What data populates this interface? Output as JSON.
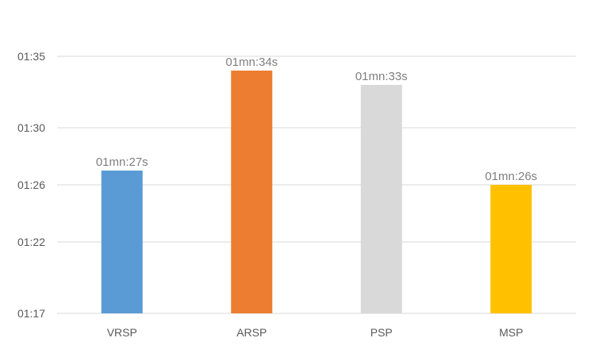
{
  "chart_data": {
    "type": "bar",
    "categories": [
      "VRSP",
      "ARSP",
      "PSP",
      "MSP"
    ],
    "values": [
      87,
      94,
      93,
      86
    ],
    "value_unit": "seconds",
    "data_labels": [
      "01mn:27s",
      "01mn:34s",
      "01mn:33s",
      "01mn:26s"
    ],
    "ylim": [
      77,
      95
    ],
    "yticks": [
      {
        "value": 77,
        "label": "01:17"
      },
      {
        "value": 82,
        "label": "01:22"
      },
      {
        "value": 86,
        "label": "01:26"
      },
      {
        "value": 90,
        "label": "01:30"
      },
      {
        "value": 95,
        "label": "01:35"
      }
    ],
    "colors": [
      "#5b9bd5",
      "#ed7d31",
      "#d9d9d9",
      "#ffc000"
    ],
    "grid": true,
    "legend": "none",
    "title": "",
    "xlabel": "",
    "ylabel": ""
  }
}
